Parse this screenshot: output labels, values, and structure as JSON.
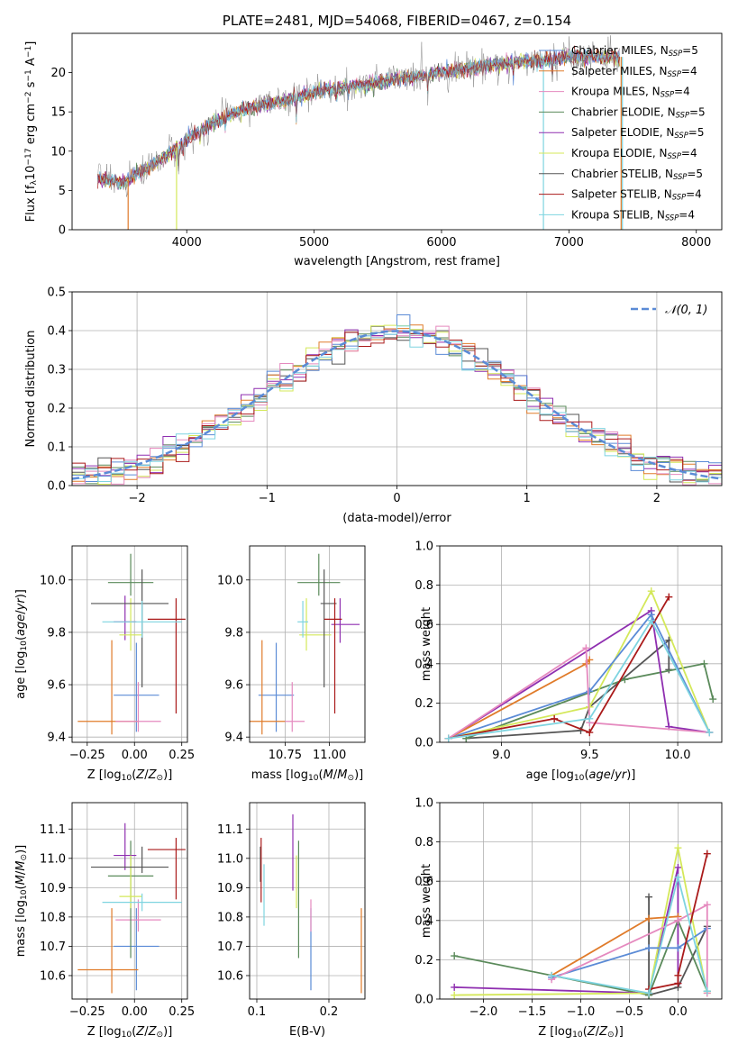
{
  "colors": [
    "#5b8bd6",
    "#e07b2a",
    "#e58abf",
    "#5a8a5a",
    "#8f2fb0",
    "#d4e85a",
    "#555555",
    "#aa1a1a",
    "#7ed4e0"
  ],
  "chart_data": [
    {
      "id": "spectrum",
      "type": "line",
      "title": "PLATE=2481, MJD=54068, FIBERID=0467, z=0.154",
      "xlabel": "wavelength [Angstrom, rest frame]",
      "ylabel": "Flux [f_λ10^-17 erg cm^-2 s^-1 A^-1]",
      "xlim": [
        3100,
        8200
      ],
      "ylim": [
        0,
        25
      ],
      "xticks": [
        4000,
        5000,
        6000,
        7000,
        8000
      ],
      "yticks": [
        0,
        5,
        10,
        15,
        20
      ],
      "legend": "top-right",
      "series": [
        {
          "name": "Chabrier MILES, N_SSP=5"
        },
        {
          "name": "Salpeter MILES, N_SSP=4"
        },
        {
          "name": "Kroupa MILES, N_SSP=4"
        },
        {
          "name": "Chabrier ELODIE, N_SSP=5"
        },
        {
          "name": "Salpeter ELODIE, N_SSP=5"
        },
        {
          "name": "Kroupa ELODIE, N_SSP=4"
        },
        {
          "name": "Chabrier STELIB, N_SSP=5"
        },
        {
          "name": "Salpeter STELIB, N_SSP=4"
        },
        {
          "name": "Kroupa STELIB, N_SSP=4"
        }
      ],
      "continuum": {
        "x": [
          3300,
          3500,
          3600,
          3800,
          4000,
          4200,
          4400,
          4600,
          4800,
          5000,
          5200,
          5400,
          5600,
          5800,
          6000,
          6200,
          6400,
          6600,
          6800,
          7000,
          7200,
          7400
        ],
        "y": [
          6.5,
          6.0,
          7.0,
          9.0,
          11.5,
          13.5,
          15.0,
          16.0,
          16.5,
          17.5,
          18.0,
          18.5,
          19.0,
          19.5,
          20.0,
          20.5,
          21.0,
          21.5,
          21.5,
          22.0,
          22.0,
          22.0
        ]
      }
    },
    {
      "id": "residuals",
      "type": "line",
      "xlabel": "(data-model)/error",
      "ylabel": "Normed distribution",
      "xlim": [
        -2.5,
        2.5
      ],
      "ylim": [
        0,
        0.5
      ],
      "xticks": [
        -2,
        -1,
        0,
        1,
        2
      ],
      "yticks": [
        0.0,
        0.1,
        0.2,
        0.3,
        0.4,
        0.5
      ],
      "grid": true,
      "legend": "top-right",
      "reference": {
        "name": "𝒩(0, 1)",
        "mu": 0,
        "sigma": 1
      }
    },
    {
      "id": "age-vs-Z",
      "type": "scatter",
      "xlabel": "Z [log10(Z/Z⊙)]",
      "ylabel": "age [log10(age/yr)]",
      "xlim": [
        -0.33,
        0.28
      ],
      "ylim": [
        9.38,
        10.13
      ],
      "xticks": [
        -0.25,
        0.0,
        0.25
      ],
      "yticks": [
        9.4,
        9.6,
        9.8,
        10.0
      ],
      "grid": true,
      "points": [
        {
          "x": 0.01,
          "y": 9.56,
          "xerr": [
            0.12,
            0.12
          ],
          "yerr": [
            0.14,
            0.2
          ]
        },
        {
          "x": -0.12,
          "y": 9.46,
          "xerr": [
            0.18,
            0.14
          ],
          "yerr": [
            0.05,
            0.31
          ]
        },
        {
          "x": 0.02,
          "y": 9.46,
          "xerr": [
            0.12,
            0.12
          ],
          "yerr": [
            0.04,
            0.15
          ]
        },
        {
          "x": -0.02,
          "y": 9.99,
          "xerr": [
            0.12,
            0.12
          ],
          "yerr": [
            0.05,
            0.11
          ]
        },
        {
          "x": -0.05,
          "y": 9.84,
          "xerr": [
            0.06,
            0.06
          ],
          "yerr": [
            0.07,
            0.1
          ]
        },
        {
          "x": -0.02,
          "y": 9.79,
          "xerr": [
            0.06,
            0.06
          ],
          "yerr": [
            0.06,
            0.14
          ]
        },
        {
          "x": 0.04,
          "y": 9.91,
          "xerr": [
            0.27,
            0.14
          ],
          "yerr": [
            0.32,
            0.13
          ]
        },
        {
          "x": 0.22,
          "y": 9.85,
          "xerr": [
            0.15,
            0.05
          ],
          "yerr": [
            0.36,
            0.08
          ]
        },
        {
          "x": 0.04,
          "y": 9.84,
          "xerr": [
            0.21,
            0.21
          ],
          "yerr": [
            0.06,
            0.08
          ]
        }
      ]
    },
    {
      "id": "age-vs-mass",
      "type": "scatter",
      "xlabel": "mass [log10(M/M⊙)]",
      "ylabel": "",
      "xlim": [
        10.55,
        11.2
      ],
      "ylim": [
        9.38,
        10.13
      ],
      "xticks": [
        10.75,
        11.0
      ],
      "yticks": [
        9.4,
        9.6,
        9.8,
        10.0
      ],
      "grid": true,
      "points": [
        {
          "x": 10.7,
          "y": 9.56,
          "xerr": [
            0.1,
            0.1
          ],
          "yerr": [
            0.14,
            0.2
          ]
        },
        {
          "x": 10.62,
          "y": 9.46,
          "xerr": [
            0.08,
            0.13
          ],
          "yerr": [
            0.05,
            0.31
          ]
        },
        {
          "x": 10.79,
          "y": 9.46,
          "xerr": [
            0.04,
            0.07
          ],
          "yerr": [
            0.04,
            0.15
          ]
        },
        {
          "x": 10.94,
          "y": 9.99,
          "xerr": [
            0.12,
            0.12
          ],
          "yerr": [
            0.05,
            0.11
          ]
        },
        {
          "x": 11.06,
          "y": 9.83,
          "xerr": [
            0.05,
            0.11
          ],
          "yerr": [
            0.07,
            0.1
          ]
        },
        {
          "x": 10.87,
          "y": 9.79,
          "xerr": [
            0.04,
            0.14
          ],
          "yerr": [
            0.06,
            0.14
          ]
        },
        {
          "x": 10.97,
          "y": 9.91,
          "xerr": [
            0.02,
            0.07
          ],
          "yerr": [
            0.32,
            0.13
          ]
        },
        {
          "x": 11.03,
          "y": 9.85,
          "xerr": [
            0.06,
            0.04
          ],
          "yerr": [
            0.36,
            0.08
          ]
        },
        {
          "x": 10.85,
          "y": 9.84,
          "xerr": [
            0.03,
            0.03
          ],
          "yerr": [
            0.06,
            0.08
          ]
        }
      ]
    },
    {
      "id": "mass-weight-vs-age",
      "type": "line",
      "xlabel": "age [log10(age/yr)]",
      "ylabel": "mass weight",
      "xlim": [
        8.65,
        10.25
      ],
      "ylim": [
        0,
        1
      ],
      "xticks": [
        9.0,
        9.5,
        10.0
      ],
      "yticks": [
        0.0,
        0.2,
        0.4,
        0.6,
        0.8,
        1.0
      ],
      "grid": true,
      "series": [
        {
          "x": [
            8.7,
            9.5,
            9.85,
            10.18
          ],
          "y": [
            0.02,
            0.26,
            0.65,
            0.05
          ]
        },
        {
          "x": [
            8.7,
            9.48,
            9.5
          ],
          "y": [
            0.02,
            0.4,
            0.42
          ]
        },
        {
          "x": [
            8.7,
            9.48,
            9.5,
            10.18
          ],
          "y": [
            0.02,
            0.48,
            0.1,
            0.05
          ]
        },
        {
          "x": [
            8.8,
            9.7,
            10.15,
            10.2
          ],
          "y": [
            0.02,
            0.32,
            0.4,
            0.22
          ]
        },
        {
          "x": [
            8.7,
            9.85,
            9.95,
            10.18
          ],
          "y": [
            0.02,
            0.67,
            0.08,
            0.05
          ]
        },
        {
          "x": [
            8.7,
            9.5,
            9.85,
            10.18
          ],
          "y": [
            0.02,
            0.18,
            0.77,
            0.05
          ]
        },
        {
          "x": [
            8.8,
            9.45,
            9.5,
            9.95,
            9.95
          ],
          "y": [
            0.02,
            0.06,
            0.18,
            0.52,
            0.37
          ]
        },
        {
          "x": [
            8.7,
            9.3,
            9.5,
            9.95
          ],
          "y": [
            0.02,
            0.12,
            0.05,
            0.74
          ]
        },
        {
          "x": [
            8.7,
            9.5,
            9.85,
            10.18
          ],
          "y": [
            0.02,
            0.12,
            0.62,
            0.05
          ]
        }
      ]
    },
    {
      "id": "mass-vs-Z",
      "type": "scatter",
      "xlabel": "Z [log10(Z/Z⊙)]",
      "ylabel": "mass [log10(M/M⊙)]",
      "xlim": [
        -0.33,
        0.28
      ],
      "ylim": [
        10.52,
        11.19
      ],
      "xticks": [
        -0.25,
        0.0,
        0.25
      ],
      "yticks": [
        10.6,
        10.7,
        10.8,
        10.9,
        11.0,
        11.1
      ],
      "grid": true,
      "points": [
        {
          "x": 0.01,
          "y": 10.7,
          "xerr": [
            0.12,
            0.12
          ],
          "yerr": [
            0.15,
            0.13
          ]
        },
        {
          "x": -0.12,
          "y": 10.62,
          "xerr": [
            0.18,
            0.14
          ],
          "yerr": [
            0.08,
            0.21
          ]
        },
        {
          "x": 0.02,
          "y": 10.79,
          "xerr": [
            0.12,
            0.12
          ],
          "yerr": [
            0.04,
            0.07
          ]
        },
        {
          "x": -0.02,
          "y": 10.94,
          "xerr": [
            0.12,
            0.12
          ],
          "yerr": [
            0.28,
            0.12
          ]
        },
        {
          "x": -0.05,
          "y": 11.01,
          "xerr": [
            0.06,
            0.06
          ],
          "yerr": [
            0.05,
            0.11
          ]
        },
        {
          "x": -0.02,
          "y": 10.87,
          "xerr": [
            0.06,
            0.06
          ],
          "yerr": [
            0.04,
            0.14
          ]
        },
        {
          "x": 0.04,
          "y": 10.97,
          "xerr": [
            0.27,
            0.14
          ],
          "yerr": [
            0.02,
            0.07
          ]
        },
        {
          "x": 0.22,
          "y": 11.03,
          "xerr": [
            0.15,
            0.05
          ],
          "yerr": [
            0.17,
            0.04
          ]
        },
        {
          "x": 0.04,
          "y": 10.85,
          "xerr": [
            0.21,
            0.21
          ],
          "yerr": [
            0.03,
            0.03
          ]
        }
      ]
    },
    {
      "id": "mass-vs-EBV",
      "type": "scatter",
      "xlabel": "E(B-V)",
      "ylabel": "",
      "xlim": [
        0.09,
        0.25
      ],
      "ylim": [
        10.52,
        11.19
      ],
      "xticks": [
        0.1,
        0.2
      ],
      "yticks": [
        10.6,
        10.7,
        10.8,
        10.9,
        11.0,
        11.1
      ],
      "grid": true,
      "points": [
        {
          "x": 0.175,
          "y": 10.7,
          "yerr": [
            0.15,
            0.13
          ]
        },
        {
          "x": 0.245,
          "y": 10.62,
          "yerr": [
            0.08,
            0.21
          ]
        },
        {
          "x": 0.175,
          "y": 10.79,
          "yerr": [
            0.04,
            0.07
          ]
        },
        {
          "x": 0.158,
          "y": 10.94,
          "yerr": [
            0.28,
            0.12
          ]
        },
        {
          "x": 0.15,
          "y": 11.01,
          "yerr": [
            0.12,
            0.14
          ]
        },
        {
          "x": 0.155,
          "y": 10.87,
          "yerr": [
            0.04,
            0.14
          ]
        },
        {
          "x": 0.105,
          "y": 10.97,
          "yerr": [
            0.05,
            0.07
          ]
        },
        {
          "x": 0.106,
          "y": 10.96,
          "yerr": [
            0.11,
            0.11
          ]
        },
        {
          "x": 0.11,
          "y": 10.88,
          "yerr": [
            0.11,
            0.1
          ]
        }
      ]
    },
    {
      "id": "mass-weight-vs-Z",
      "type": "line",
      "xlabel": "Z [log10(Z/Z⊙)]",
      "ylabel": "mass weight",
      "xlim": [
        -2.45,
        0.45
      ],
      "ylim": [
        0,
        1
      ],
      "xticks": [
        -2.0,
        -1.5,
        -1.0,
        -0.5,
        0.0
      ],
      "yticks": [
        0.0,
        0.2,
        0.4,
        0.6,
        0.8,
        1.0
      ],
      "grid": true,
      "series": [
        {
          "x": [
            -1.3,
            -0.3,
            0.0,
            0.3
          ],
          "y": [
            0.11,
            0.26,
            0.26,
            0.36
          ]
        },
        {
          "x": [
            -1.3,
            -0.3,
            0.0
          ],
          "y": [
            0.12,
            0.41,
            0.42
          ]
        },
        {
          "x": [
            -1.3,
            0.0,
            0.3,
            0.3
          ],
          "y": [
            0.1,
            0.4,
            0.48,
            0.03
          ]
        },
        {
          "x": [
            -2.3,
            -0.3,
            0.0,
            0.3
          ],
          "y": [
            0.22,
            0.02,
            0.4,
            0.04
          ]
        },
        {
          "x": [
            -2.3,
            -0.3,
            0.0,
            0.0
          ],
          "y": [
            0.06,
            0.03,
            0.67,
            0.08
          ]
        },
        {
          "x": [
            -2.3,
            -0.3,
            0.0,
            0.3
          ],
          "y": [
            0.02,
            0.03,
            0.77,
            0.03
          ]
        },
        {
          "x": [
            -0.3,
            -0.3,
            0.0,
            0.3
          ],
          "y": [
            0.52,
            0.02,
            0.06,
            0.37
          ]
        },
        {
          "x": [
            -0.3,
            0.0,
            0.0,
            0.3
          ],
          "y": [
            0.05,
            0.08,
            0.12,
            0.74
          ]
        },
        {
          "x": [
            -1.3,
            -0.3,
            0.0,
            0.3
          ],
          "y": [
            0.12,
            0.03,
            0.62,
            0.04
          ]
        }
      ]
    }
  ]
}
